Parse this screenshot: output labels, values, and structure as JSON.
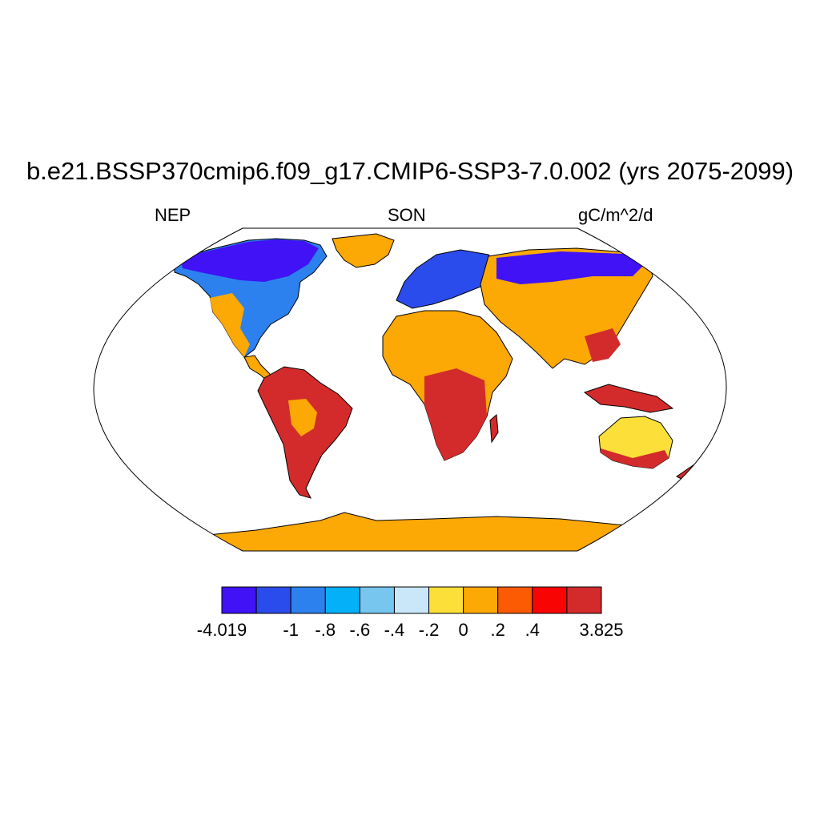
{
  "title": "b.e21.BSSP370cmip6.f09_g17.CMIP6-SSP3-7.0.002 (yrs 2075-2099)",
  "left_string": "NEP",
  "center_string": "SON",
  "right_string": "gC/m^2/d",
  "colorbar": {
    "colors": [
      "#4012f5",
      "#2b4cec",
      "#2c81ee",
      "#04b0f8",
      "#76c6ef",
      "#c9e7f8",
      "#fcdf38",
      "#fca805",
      "#fc5a03",
      "#f80402",
      "#d32b2b"
    ],
    "labels": [
      "-4.019",
      "-1",
      "-.8",
      "-.6",
      "-.4",
      "-.2",
      "0",
      ".2",
      ".4",
      "3.825"
    ]
  },
  "colors": {
    "antarctica": "#fca805",
    "outline": "#000000",
    "background": "#ffffff"
  }
}
